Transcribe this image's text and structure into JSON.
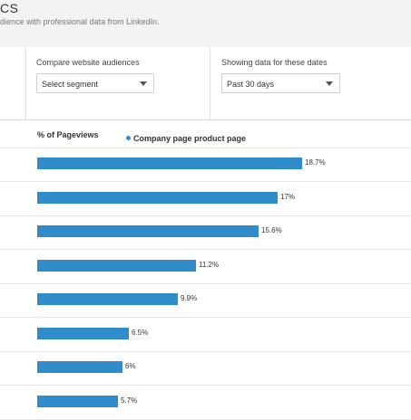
{
  "header": {
    "title": "CS",
    "subtitle": "dience with professional data from LinkedIn."
  },
  "filters": {
    "compare": {
      "label": "Compare website audiences",
      "value": "Select segment"
    },
    "dates": {
      "label": "Showing data for these dates",
      "value": "Past 30 days"
    }
  },
  "colors": {
    "bar": "#2f8bc9"
  },
  "chart_data": {
    "type": "bar",
    "orientation": "horizontal",
    "column_header": "% of Pageviews",
    "series": [
      {
        "name": "Company page product page",
        "values": [
          18.7,
          17,
          15.6,
          11.2,
          9.9,
          6.5,
          6,
          5.7
        ],
        "labels": [
          "18.7%",
          "17%",
          "15.6%",
          "11.2%",
          "9.9%",
          "6.5%",
          "6%",
          "5.7%"
        ]
      }
    ]
  }
}
